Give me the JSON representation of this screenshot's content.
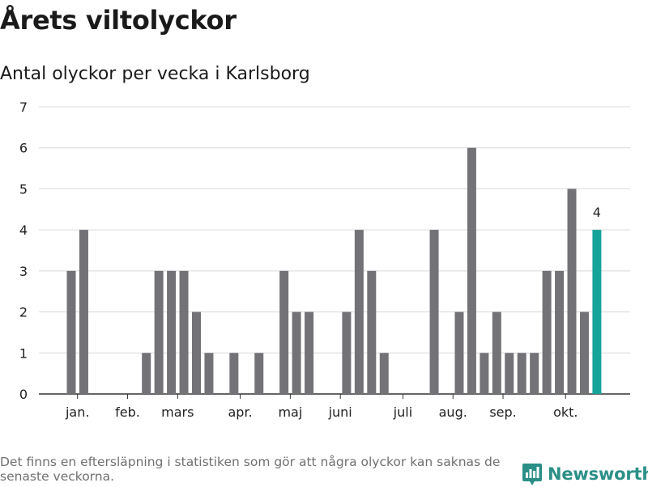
{
  "header": {
    "title": "Årets viltolyckor",
    "subtitle": "Antal olyckor per vecka i Karlsborg"
  },
  "footer": {
    "note": "Det finns en eftersläpning i statistiken som gör att några olyckor kan saknas de senaste veckorna.",
    "brand": "Newsworthy"
  },
  "colors": {
    "bar": "#737277",
    "highlight": "#16a39a",
    "grid": "#d9d9d9",
    "axis": "#333333",
    "brand": "#2b8f87"
  },
  "chart_data": {
    "type": "bar",
    "title": "Årets viltolyckor",
    "subtitle": "Antal olyckor per vecka i Karlsborg",
    "xlabel": "",
    "ylabel": "",
    "ylim": [
      0,
      7
    ],
    "yticks": [
      0,
      1,
      2,
      3,
      4,
      5,
      6,
      7
    ],
    "grid": true,
    "weeks": [
      1,
      2,
      3,
      4,
      5,
      6,
      7,
      8,
      9,
      10,
      11,
      12,
      13,
      14,
      15,
      16,
      17,
      18,
      19,
      20,
      21,
      22,
      23,
      24,
      25,
      26,
      27,
      28,
      29,
      30,
      31,
      32,
      33,
      34,
      35,
      36,
      37,
      38,
      39,
      40,
      41,
      42,
      43
    ],
    "values": [
      3,
      4,
      0,
      0,
      0,
      0,
      1,
      3,
      3,
      3,
      2,
      1,
      0,
      1,
      0,
      1,
      0,
      3,
      2,
      2,
      0,
      0,
      2,
      4,
      3,
      1,
      0,
      0,
      0,
      4,
      0,
      2,
      6,
      1,
      2,
      1,
      1,
      1,
      3,
      3,
      5,
      2,
      4
    ],
    "highlight_index": 42,
    "data_labels": [
      {
        "index": 42,
        "text": "4"
      }
    ],
    "month_ticks": [
      {
        "label": "jan.",
        "week": 1.5
      },
      {
        "label": "feb.",
        "week": 5.5
      },
      {
        "label": "mars",
        "week": 9.5
      },
      {
        "label": "apr.",
        "week": 14.5
      },
      {
        "label": "maj",
        "week": 18.5
      },
      {
        "label": "juni",
        "week": 22.5
      },
      {
        "label": "juli",
        "week": 27.5
      },
      {
        "label": "aug.",
        "week": 31.5
      },
      {
        "label": "sep.",
        "week": 35.5
      },
      {
        "label": "okt.",
        "week": 40.5
      }
    ]
  }
}
